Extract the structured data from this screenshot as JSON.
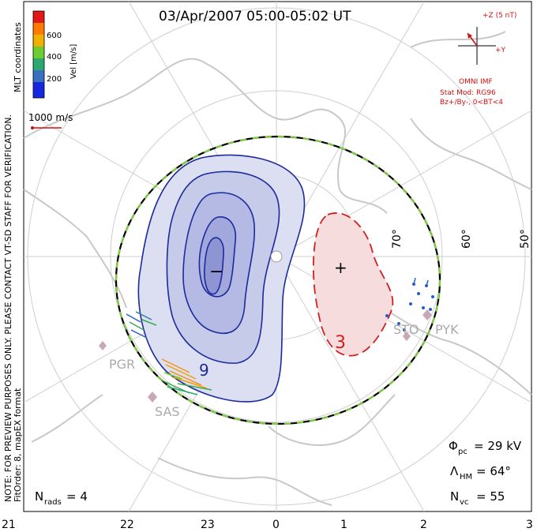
{
  "header": {
    "title": "03/Apr/2007 05:00-05:02 UT"
  },
  "colorbar": {
    "label": "Vel [m/s]",
    "ticks": [
      "600",
      "400",
      "200"
    ],
    "colors": [
      "#e01818",
      "#ff7a00",
      "#f0b000",
      "#6ccc30",
      "#2aa870",
      "#3a70c0",
      "#1428e0"
    ]
  },
  "coord_label": "MLT coordinates",
  "scale": {
    "label": "1000 m/s"
  },
  "side_note": {
    "line1": "NOTE: FOR PREVIEW PURPOSES ONLY. PLEASE CONTACT VT-SD STAFF FOR VERIFICATION.",
    "line2": "FitOrder: 8, mapEX format"
  },
  "imf": {
    "z_label": "+Z (5 nT)",
    "y_label": "+Y",
    "source": "OMNI IMF",
    "model_line1": "Stat Mod: RG96",
    "model_line2": "Bz+/By-, 0<BT<4"
  },
  "latitude_labels": [
    "70°",
    "60°",
    "50°"
  ],
  "stations": [
    "PGR",
    "SAS",
    "STO",
    "PYK"
  ],
  "contours": {
    "label_negative": "9",
    "label_positive": "3",
    "neg_marker": "−",
    "pos_marker": "+"
  },
  "stats": {
    "phi_label": "Φ",
    "phi_sub": "pc",
    "phi_value": "= 29 kV",
    "lambda_label": "Λ",
    "lambda_sub": "HM",
    "lambda_value": "= 64°",
    "nvc_label": "N",
    "nvc_sub": "vc",
    "nvc_value": "= 55",
    "nrads_label": "N",
    "nrads_sub": "rads",
    "nrads_value": "= 4"
  },
  "mlt_axis": [
    "21",
    "22",
    "23",
    "0",
    "1",
    "2",
    "3"
  ],
  "colors": {
    "neg_fill": "#dcdff2",
    "neg_line": "#1c2a9c",
    "pos_fill": "#f6dcdc",
    "pos_line": "#d02020",
    "hmb_dash": "#7ccd40",
    "imf_red": "#d01010"
  }
}
